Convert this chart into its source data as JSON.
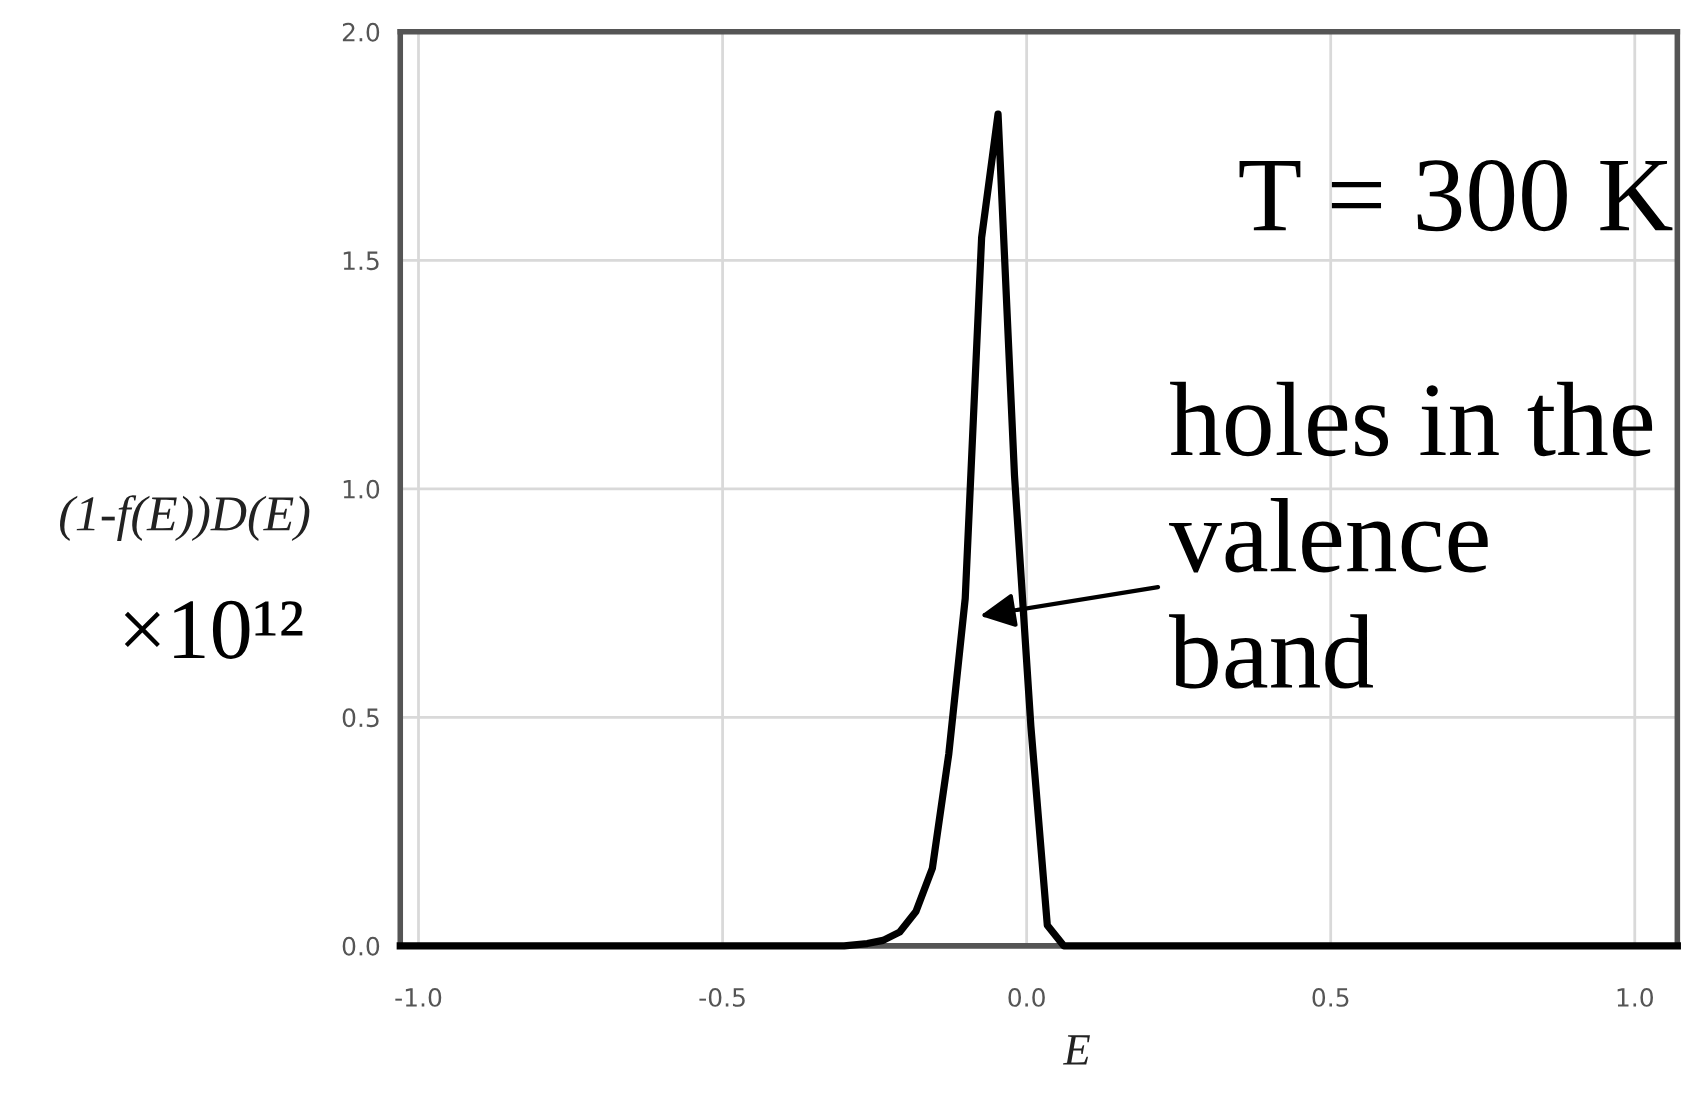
{
  "chart_data": {
    "type": "line",
    "xlabel": "E",
    "ylabel": "(1-f(E))D(E)",
    "x": [
      -1.03,
      -0.3,
      -0.262,
      -0.236,
      -0.209,
      -0.182,
      -0.155,
      -0.128,
      -0.101,
      -0.074,
      -0.047,
      -0.02,
      0.007,
      0.034,
      0.061,
      1.07
    ],
    "series": [
      {
        "color": "#000000",
        "values": [
          0,
          0,
          0.005,
          0.012,
          0.03,
          0.075,
          0.17,
          0.42,
          0.76,
          1.55,
          1.82,
          1.03,
          0.48,
          0.045,
          0,
          0
        ]
      }
    ],
    "xlim": [
      -1.03,
      1.07
    ],
    "ylim": [
      0,
      2.0
    ],
    "xticks": [
      {
        "value": -1,
        "label": "-1.0"
      },
      {
        "value": -0.5,
        "label": "-0.5"
      },
      {
        "value": 0,
        "label": "0.0"
      },
      {
        "value": 0.5,
        "label": "0.5"
      },
      {
        "value": 1,
        "label": "1.0"
      }
    ],
    "yticks": [
      {
        "value": 0,
        "label": "0.0"
      },
      0.5,
      {
        "value": 1,
        "label": "1.0"
      },
      1.5,
      {
        "value": 2,
        "label": "2.0"
      }
    ],
    "grid": true,
    "annotations": [
      "T = 300 K",
      "holes in the\nvalence\nband",
      "×10¹²"
    ]
  }
}
